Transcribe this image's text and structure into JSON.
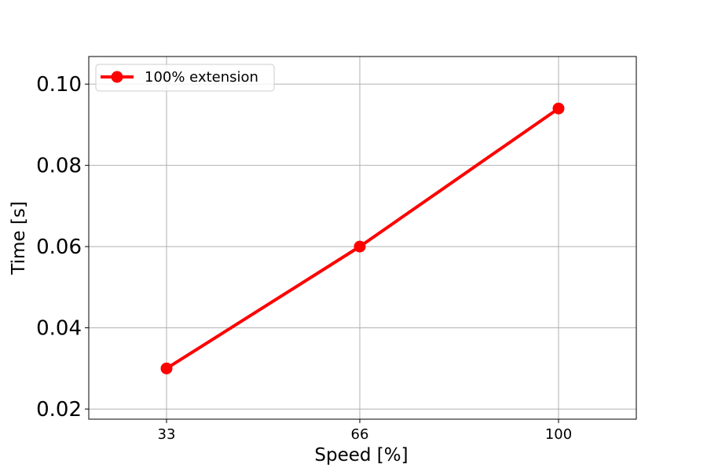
{
  "chart_data": {
    "type": "line",
    "title": "",
    "xlabel": "Speed [%]",
    "ylabel": "Time [s]",
    "categories": [
      "33",
      "66",
      "100"
    ],
    "x": [
      33,
      66,
      100
    ],
    "y_ticks": [
      "0.02",
      "0.04",
      "0.06",
      "0.08",
      "0.10"
    ],
    "ylim": [
      0.0175,
      0.1068
    ],
    "grid": true,
    "legend_position": "top-left",
    "series": [
      {
        "name": "100% extension",
        "color": "#ff0000",
        "marker": "circle",
        "values": [
          0.03,
          0.06,
          0.094
        ]
      }
    ]
  }
}
